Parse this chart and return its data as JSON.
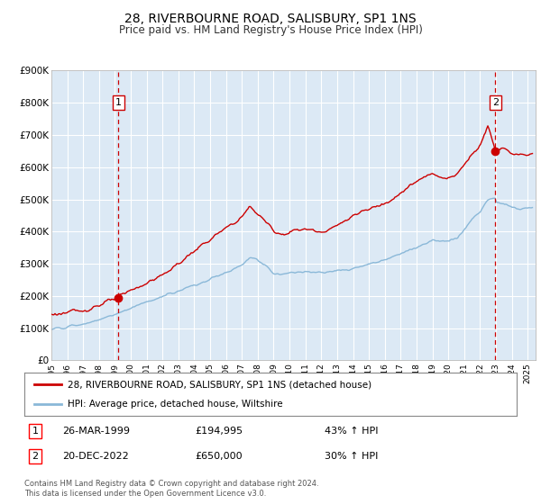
{
  "title": "28, RIVERBOURNE ROAD, SALISBURY, SP1 1NS",
  "subtitle": "Price paid vs. HM Land Registry's House Price Index (HPI)",
  "title_fontsize": 10,
  "subtitle_fontsize": 8.5,
  "bg_color": "#dce9f5",
  "grid_color": "#ffffff",
  "red_line_color": "#cc0000",
  "blue_line_color": "#8ab8d8",
  "dashed_vline_color": "#cc0000",
  "sale1_date_num": 1999.23,
  "sale1_price": 194995,
  "sale1_date_str": "26-MAR-1999",
  "sale1_price_str": "£194,995",
  "sale1_hpi_str": "43% ↑ HPI",
  "sale2_date_num": 2022.97,
  "sale2_price": 650000,
  "sale2_date_str": "20-DEC-2022",
  "sale2_price_str": "£650,000",
  "sale2_hpi_str": "30% ↑ HPI",
  "xmin": 1995.0,
  "xmax": 2025.5,
  "ymin": 0,
  "ymax": 900000,
  "yticks": [
    0,
    100000,
    200000,
    300000,
    400000,
    500000,
    600000,
    700000,
    800000,
    900000
  ],
  "ytick_labels": [
    "£0",
    "£100K",
    "£200K",
    "£300K",
    "£400K",
    "£500K",
    "£600K",
    "£700K",
    "£800K",
    "£900K"
  ],
  "xtick_years": [
    1995,
    1996,
    1997,
    1998,
    1999,
    2000,
    2001,
    2002,
    2003,
    2004,
    2005,
    2006,
    2007,
    2008,
    2009,
    2010,
    2011,
    2012,
    2013,
    2014,
    2015,
    2016,
    2017,
    2018,
    2019,
    2020,
    2021,
    2022,
    2023,
    2024,
    2025
  ],
  "legend_label_red": "28, RIVERBOURNE ROAD, SALISBURY, SP1 1NS (detached house)",
  "legend_label_blue": "HPI: Average price, detached house, Wiltshire",
  "footer": "Contains HM Land Registry data © Crown copyright and database right 2024.\nThis data is licensed under the Open Government Licence v3.0."
}
